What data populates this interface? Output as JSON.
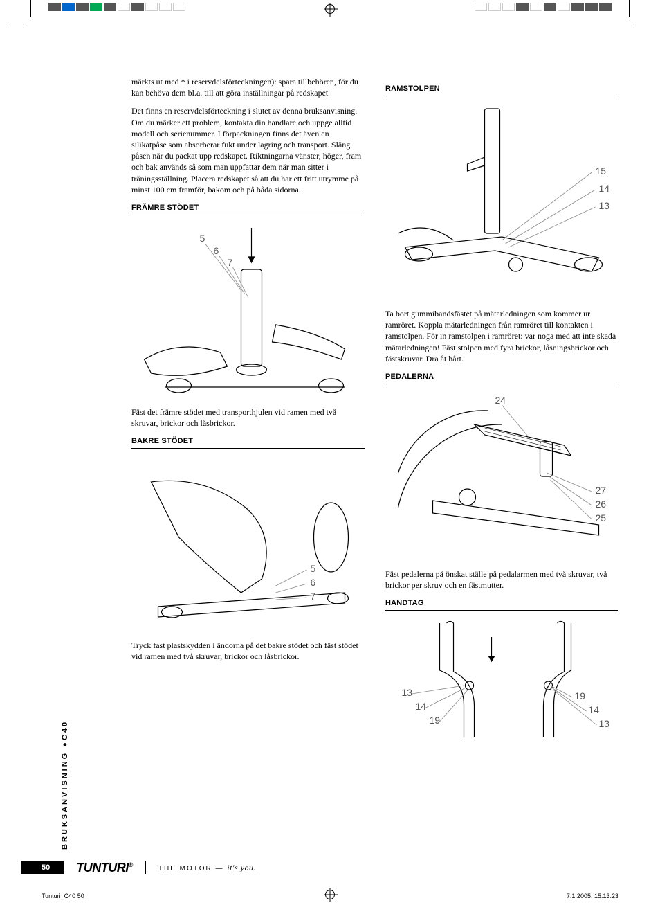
{
  "meta": {
    "page_number": "50",
    "vertical_label": "BRUKSANVISNING",
    "vertical_model": "C40",
    "brand": "TUNTURI",
    "tagline_caps": "THE MOTOR —",
    "tagline_em": "it's you.",
    "file_ref": "Tunturi_C40   50",
    "timestamp": "7.1.2005, 15:13:23"
  },
  "colorbars": [
    "#555555",
    "#0066cc",
    "#555555",
    "#00aa55",
    "#555555",
    "#ffffff",
    "#555555",
    "#ffffff",
    "#ffffff",
    "#ffffff"
  ],
  "colorbars_right": [
    "#ffffff",
    "#ffffff",
    "#ffffff",
    "#555555",
    "#ffffff",
    "#555555",
    "#ffffff",
    "#555555",
    "#555555",
    "#555555"
  ],
  "left_column": {
    "para1": "märkts ut med * i reservdelsförteckningen): spara tillbehören, för du kan behöva dem bl.a. till att göra inställningar på redskapet",
    "para2": "Det finns en reservdelsförteckning i slutet av denna bruksanvisning. Om du märker ett problem, kontakta din handlare och uppge alltid modell och serienummer. I förpackningen finns det även en silikatpåse som absorberar fukt under lagring och transport. Släng påsen när du packat upp redskapet. Riktningarna vänster, höger, fram och bak används så som man uppfattar dem när man sitter i träningsställning. Placera redskapet så att du har ett fritt utrymme på minst 100 cm framför, bakom och på båda sidorna.",
    "section1_title": "FRÄMRE STÖDET",
    "section1_callouts": [
      "5",
      "6",
      "7"
    ],
    "section1_caption": "Fäst det främre stödet med transporthjulen vid ramen med två skruvar, brickor och låsbrickor.",
    "section2_title": "BAKRE STÖDET",
    "section2_callouts": [
      "5",
      "6",
      "7"
    ],
    "section2_caption": "Tryck fast plastskydden i ändorna på det bakre stödet och fäst stödet vid ramen med två skruvar, brickor och låsbrickor."
  },
  "right_column": {
    "section1_title": "RAMSTOLPEN",
    "section1_callouts": [
      "15",
      "14",
      "13"
    ],
    "section1_caption": "Ta bort gummibandsfästet på mätarledningen som kommer ur ramröret. Koppla mätarledningen från ramröret till kontakten i ramstolpen. För in ramstolpen i ramröret: var noga med att inte skada mätarledningen! Fäst stolpen med fyra brickor, låsningsbrickor och fästskruvar. Dra åt hårt.",
    "section2_title": "PEDALERNA",
    "section2_callouts": [
      "24",
      "27",
      "26",
      "25"
    ],
    "section2_caption": "Fäst pedalerna på önskat ställe på pedalarmen med två skruvar, två brickor per skruv och en fästmutter.",
    "section3_title": "HANDTAG",
    "section3_callouts_left": [
      "13",
      "14",
      "19"
    ],
    "section3_callouts_right": [
      "19",
      "14",
      "13"
    ]
  },
  "figure_style": {
    "stroke": "#000000",
    "stroke_width": 1.2,
    "fill": "none",
    "callout_color": "#666666",
    "callout_fontsize": 14
  }
}
